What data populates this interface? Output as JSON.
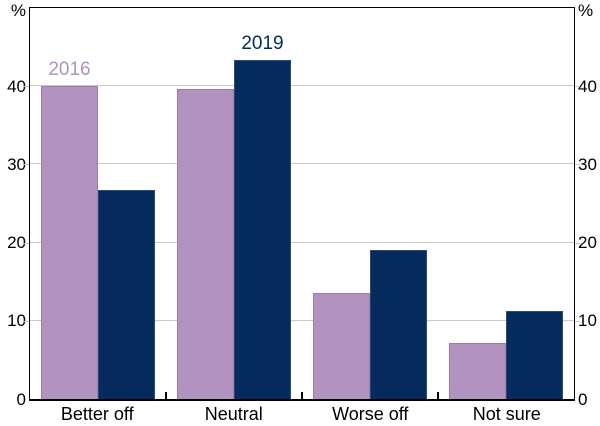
{
  "figure": {
    "unit_left": "%",
    "unit_right": "%"
  },
  "chart_data": {
    "type": "bar",
    "title": "",
    "categories": [
      "Better off",
      "Neutral",
      "Worse off",
      "Not sure"
    ],
    "series": [
      {
        "name": "2016",
        "color": "#b292bf",
        "border_color": "#a07cae",
        "values": [
          40.0,
          39.6,
          13.5,
          7.2
        ]
      },
      {
        "name": "2019",
        "color": "#052b5c",
        "border_color": "#2a4a7a",
        "values": [
          26.7,
          43.4,
          19.0,
          11.2
        ]
      }
    ],
    "unit": "%",
    "ylim": [
      0,
      50
    ],
    "yticks": [
      0,
      10,
      20,
      30,
      40
    ],
    "grid": true,
    "gridline_color": "#c9c9c9",
    "axis_color": "#000000",
    "legend_style": "labels-above-bars",
    "series_labels": [
      {
        "series_index": 0,
        "category_index": 0
      },
      {
        "series_index": 1,
        "category_index": 1
      }
    ]
  }
}
